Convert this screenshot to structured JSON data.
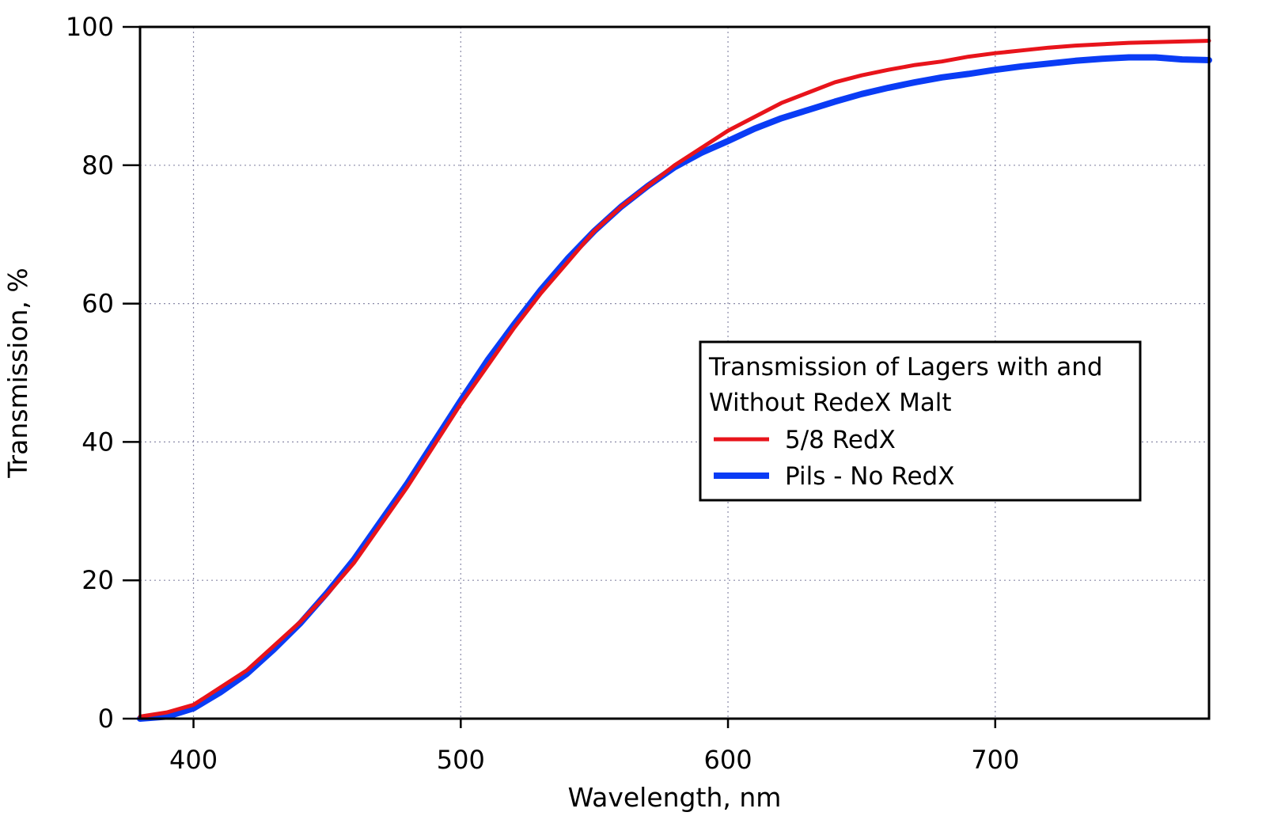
{
  "chart_data": {
    "type": "line",
    "title": "",
    "xlabel": "Wavelength, nm",
    "ylabel": "Transmission, %",
    "xlim": [
      380,
      780
    ],
    "ylim": [
      0,
      100
    ],
    "xticks": [
      400,
      500,
      600,
      700
    ],
    "yticks": [
      0,
      20,
      40,
      60,
      80,
      100
    ],
    "grid": true,
    "legend": {
      "title": "Transmission of Lagers with and Without RedeX Malt",
      "title_lines": [
        "Transmission of Lagers with and",
        "Without RedeX Malt"
      ],
      "placement": "center-right"
    },
    "series": [
      {
        "name": "5/8 RedX",
        "color": "#e8141b",
        "x": [
          380,
          390,
          400,
          410,
          420,
          430,
          440,
          450,
          460,
          470,
          480,
          490,
          500,
          510,
          520,
          530,
          540,
          550,
          560,
          570,
          580,
          590,
          600,
          610,
          620,
          630,
          640,
          650,
          660,
          670,
          680,
          690,
          700,
          710,
          720,
          730,
          740,
          750,
          760,
          770,
          780
        ],
        "y": [
          0.3,
          0.9,
          2.0,
          4.5,
          7.0,
          10.5,
          14.0,
          18.0,
          22.5,
          28.0,
          33.5,
          39.5,
          45.5,
          51.0,
          56.5,
          61.5,
          66.0,
          70.5,
          74.0,
          77.0,
          80.0,
          82.5,
          85.0,
          87.0,
          89.0,
          90.5,
          92.0,
          93.0,
          93.8,
          94.5,
          95.0,
          95.7,
          96.2,
          96.6,
          97.0,
          97.3,
          97.5,
          97.7,
          97.8,
          97.9,
          98.0
        ]
      },
      {
        "name": "Pils - No RedX",
        "color": "#0a3cf5",
        "x": [
          380,
          390,
          400,
          410,
          420,
          430,
          440,
          450,
          460,
          470,
          480,
          490,
          500,
          510,
          520,
          530,
          540,
          550,
          560,
          570,
          580,
          590,
          600,
          610,
          620,
          630,
          640,
          650,
          660,
          670,
          680,
          690,
          700,
          710,
          720,
          730,
          740,
          750,
          760,
          770,
          780
        ],
        "y": [
          0.0,
          0.3,
          1.5,
          3.8,
          6.5,
          10.0,
          13.8,
          18.2,
          23.0,
          28.5,
          34.0,
          40.0,
          46.0,
          51.8,
          57.0,
          62.0,
          66.5,
          70.5,
          74.0,
          77.0,
          79.7,
          81.8,
          83.5,
          85.3,
          86.8,
          88.0,
          89.2,
          90.3,
          91.2,
          92.0,
          92.7,
          93.2,
          93.8,
          94.3,
          94.7,
          95.1,
          95.4,
          95.6,
          95.6,
          95.3,
          95.2
        ]
      }
    ]
  }
}
